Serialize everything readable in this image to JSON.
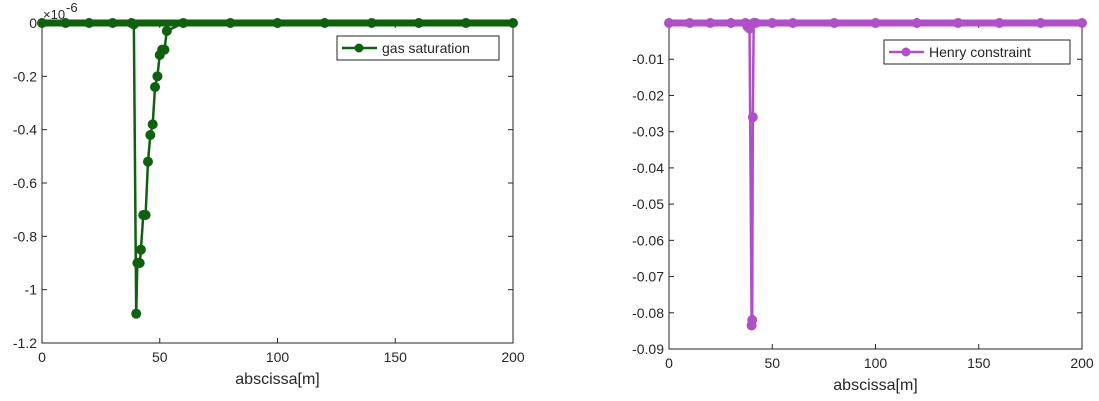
{
  "chart_data": [
    {
      "type": "line",
      "title": "",
      "xlabel": "abscissa[m]",
      "ylabel": "",
      "xlim": [
        0,
        200
      ],
      "ylim": [
        -1.2,
        0
      ],
      "y_multiplier_label": "×10",
      "y_multiplier_exponent": "-6",
      "xticks": [
        0,
        50,
        100,
        150,
        200
      ],
      "xtick_labels": [
        "0",
        "50",
        "100",
        "150",
        "200"
      ],
      "yticks": [
        0,
        -0.2,
        -0.4,
        -0.6,
        -0.8,
        -1,
        -1.2
      ],
      "ytick_labels": [
        "0",
        "-0.2",
        "-0.4",
        "-0.6",
        "-0.8",
        "-1",
        "-1.2"
      ],
      "grid": false,
      "legend_position": "top-right",
      "series": [
        {
          "name": "gas saturation",
          "color": "#0f600f",
          "x": [
            0,
            10,
            20,
            30,
            38,
            39,
            40,
            40.5,
            41,
            41.5,
            42,
            43,
            44,
            45,
            46,
            47,
            48,
            49,
            50,
            51,
            52,
            53,
            60,
            80,
            100,
            120,
            140,
            160,
            180,
            200
          ],
          "y": [
            0,
            0,
            0,
            0,
            0,
            -0.005,
            -1.09,
            -0.9,
            -0.9,
            -0.9,
            -0.85,
            -0.72,
            -0.72,
            -0.52,
            -0.42,
            -0.38,
            -0.24,
            -0.2,
            -0.12,
            -0.1,
            -0.1,
            -0.03,
            0,
            0,
            0,
            0,
            0,
            0,
            0,
            0
          ]
        }
      ]
    },
    {
      "type": "line",
      "title": "",
      "xlabel": "abscissa[m]",
      "ylabel": "",
      "xlim": [
        0,
        200
      ],
      "ylim": [
        -0.09,
        0
      ],
      "xticks": [
        0,
        50,
        100,
        150,
        200
      ],
      "xtick_labels": [
        "0",
        "50",
        "100",
        "150",
        "200"
      ],
      "yticks": [
        -0.01,
        -0.02,
        -0.03,
        -0.04,
        -0.05,
        -0.06,
        -0.07,
        -0.08,
        -0.09
      ],
      "ytick_labels": [
        "-0.01",
        "-0.02",
        "-0.03",
        "-0.04",
        "-0.05",
        "-0.06",
        "-0.07",
        "-0.08",
        "-0.09"
      ],
      "grid": false,
      "legend_position": "top-right",
      "series": [
        {
          "name": "Henry constraint",
          "color": "#b050c8",
          "x": [
            0,
            10,
            20,
            30,
            37,
            38,
            39,
            40,
            40.3,
            40.6,
            41,
            42,
            50,
            60,
            80,
            100,
            120,
            140,
            160,
            180,
            200
          ],
          "y": [
            0,
            0,
            0,
            0,
            0,
            -0.001,
            -0.0015,
            -0.0835,
            -0.082,
            -0.026,
            0,
            0,
            0,
            0,
            0,
            0,
            0,
            0,
            0,
            0,
            0
          ]
        }
      ]
    }
  ]
}
